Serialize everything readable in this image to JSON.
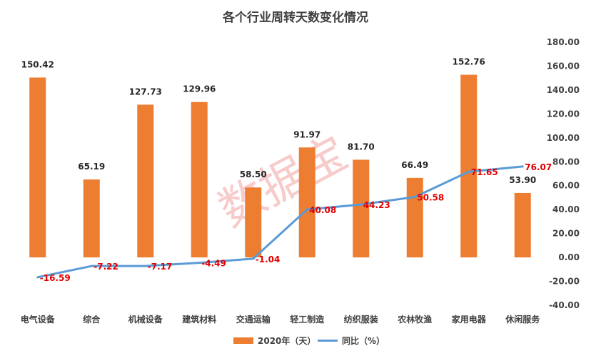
{
  "chart_data": {
    "type": "bar",
    "title": "各个行业周转天数变化情况",
    "categories": [
      "电气设备",
      "综合",
      "机械设备",
      "建筑材料",
      "交通运输",
      "轻工制造",
      "纺织服装",
      "农林牧渔",
      "家用电器",
      "休闲服务"
    ],
    "series": [
      {
        "name": "2020年（天）",
        "type": "bar",
        "color": "#ed7d31",
        "values": [
          150.42,
          65.19,
          127.73,
          129.96,
          58.5,
          91.97,
          81.7,
          66.49,
          152.76,
          53.9
        ],
        "labels": [
          "150.42",
          "65.19",
          "127.73",
          "129.96",
          "58.50",
          "91.97",
          "81.70",
          "66.49",
          "152.76",
          "53.90"
        ]
      },
      {
        "name": "同比（%）",
        "type": "line",
        "color": "#5b9bd5",
        "values": [
          -16.59,
          -7.22,
          -7.17,
          -4.49,
          -1.04,
          40.08,
          44.23,
          50.58,
          71.65,
          76.07
        ],
        "labels": [
          "-16.59",
          "-7.22",
          "-7.17",
          "-4.49",
          "-1.04",
          "40.08",
          "44.23",
          "50.58",
          "71.65",
          "76.07"
        ]
      }
    ],
    "y_axis": {
      "position": "right",
      "range": [
        -40,
        180
      ],
      "ticks": [
        "180.00",
        "160.00",
        "140.00",
        "120.00",
        "100.00",
        "80.00",
        "60.00",
        "40.00",
        "20.00",
        "0.00",
        "-20.00",
        "-40.00"
      ]
    },
    "legend": "bottom",
    "grid": false,
    "watermark": "数据宝"
  }
}
